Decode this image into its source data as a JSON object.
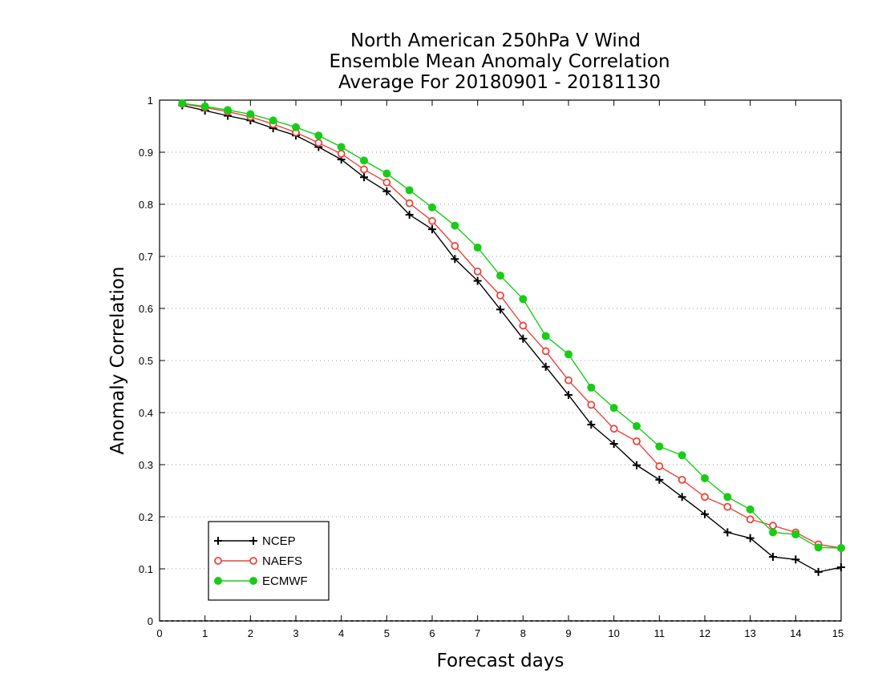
{
  "chart_data": {
    "type": "line",
    "title": [
      "North American 250hPa V Wind",
      "Ensemble Mean Anomaly Correlation",
      "Average For 20180901 - 20181130"
    ],
    "xlabel": "Forecast days",
    "ylabel": "Anomaly Correlation",
    "xlim": [
      0,
      15
    ],
    "ylim": [
      0,
      1
    ],
    "xticks": [
      0,
      1,
      2,
      3,
      4,
      5,
      6,
      7,
      8,
      9,
      10,
      11,
      12,
      13,
      14,
      15
    ],
    "xtick_labels": [
      "0",
      "1",
      "2",
      "3",
      "4",
      "5",
      "6",
      "7",
      "8",
      "9",
      "10",
      "11",
      "12",
      "13",
      "14",
      "15"
    ],
    "yticks": [
      0,
      0.1,
      0.2,
      0.3,
      0.4,
      0.5,
      0.6,
      0.7,
      0.8,
      0.9,
      1
    ],
    "ytick_labels": [
      "0",
      "0.1",
      "0.2",
      "0.3",
      "0.4",
      "0.5",
      "0.6",
      "0.7",
      "0.8",
      "0.9",
      "1"
    ],
    "grid": "horizontal dotted",
    "legend_position": "bottom-left",
    "x": [
      0.5,
      1,
      1.5,
      2,
      2.5,
      3,
      3.5,
      4,
      4.5,
      5,
      5.5,
      6,
      6.5,
      7,
      7.5,
      8,
      8.5,
      9,
      9.5,
      10,
      10.5,
      11,
      11.5,
      12,
      12.5,
      13,
      13.5,
      14,
      14.5,
      15
    ],
    "series": [
      {
        "name": "NCEP",
        "color": "#000000",
        "marker": "plus",
        "values": [
          0.99,
          0.98,
          0.97,
          0.961,
          0.946,
          0.932,
          0.91,
          0.886,
          0.852,
          0.825,
          0.78,
          0.752,
          0.695,
          0.653,
          0.598,
          0.542,
          0.488,
          0.434,
          0.377,
          0.34,
          0.299,
          0.271,
          0.238,
          0.205,
          0.17,
          0.159,
          0.123,
          0.118,
          0.094,
          0.103
        ]
      },
      {
        "name": "NAEFS",
        "color": "#e8453c",
        "marker": "open-circle",
        "values": [
          0.993,
          0.986,
          0.978,
          0.968,
          0.954,
          0.938,
          0.918,
          0.897,
          0.867,
          0.842,
          0.802,
          0.768,
          0.72,
          0.671,
          0.625,
          0.567,
          0.518,
          0.462,
          0.415,
          0.369,
          0.345,
          0.297,
          0.271,
          0.238,
          0.219,
          0.195,
          0.183,
          0.17,
          0.147,
          0.14
        ]
      },
      {
        "name": "ECMWF",
        "color": "#18cc18",
        "marker": "filled-circle",
        "values": [
          0.994,
          0.988,
          0.981,
          0.973,
          0.961,
          0.948,
          0.932,
          0.91,
          0.884,
          0.859,
          0.827,
          0.794,
          0.759,
          0.717,
          0.663,
          0.618,
          0.547,
          0.512,
          0.448,
          0.409,
          0.374,
          0.335,
          0.318,
          0.274,
          0.238,
          0.214,
          0.17,
          0.166,
          0.141,
          0.14
        ]
      }
    ]
  }
}
